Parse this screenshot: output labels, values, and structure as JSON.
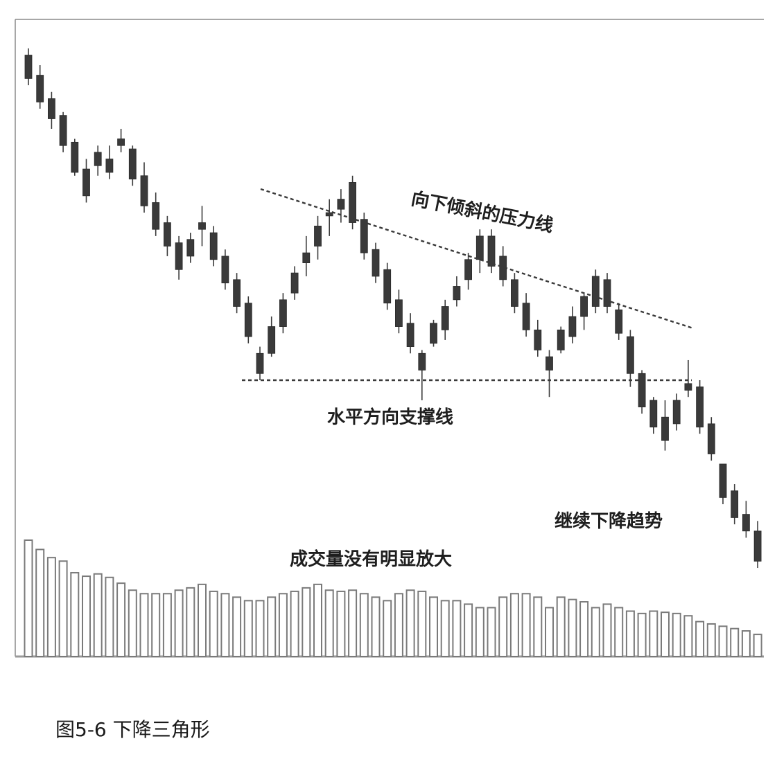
{
  "caption": "图5-6 下降三角形",
  "chart_data": {
    "type": "candlestick",
    "title": "",
    "xlabel": "",
    "ylabel": "",
    "grid": false,
    "colors": {
      "candle": "#3a3a3a",
      "volume_outline": "#7a7a7a",
      "line": "#3a3a3a",
      "frame": "#8a8a8a"
    },
    "annotations": {
      "resistance": "向下倾斜的压力线",
      "support": "水平方向支撑线",
      "trend": "继续下降趋势",
      "volume": "成交量没有明显放大"
    },
    "price_range": [
      0,
      100
    ],
    "candles": [
      {
        "o": 97,
        "h": 99,
        "l": 88,
        "c": 90
      },
      {
        "o": 91,
        "h": 94,
        "l": 81,
        "c": 83
      },
      {
        "o": 84,
        "h": 86,
        "l": 75,
        "c": 78
      },
      {
        "o": 79,
        "h": 80,
        "l": 68,
        "c": 70
      },
      {
        "o": 71,
        "h": 72,
        "l": 61,
        "c": 62
      },
      {
        "o": 63,
        "h": 66,
        "l": 53,
        "c": 55
      },
      {
        "o": 64,
        "h": 70,
        "l": 61,
        "c": 68
      },
      {
        "o": 66,
        "h": 70,
        "l": 60,
        "c": 62
      },
      {
        "o": 72,
        "h": 75,
        "l": 68,
        "c": 70
      },
      {
        "o": 69,
        "h": 70,
        "l": 58,
        "c": 60
      },
      {
        "o": 61,
        "h": 65,
        "l": 50,
        "c": 52
      },
      {
        "o": 53,
        "h": 56,
        "l": 43,
        "c": 45
      },
      {
        "o": 47,
        "h": 49,
        "l": 37,
        "c": 40
      },
      {
        "o": 41,
        "h": 43,
        "l": 30,
        "c": 33
      },
      {
        "o": 37,
        "h": 44,
        "l": 35,
        "c": 42
      },
      {
        "o": 45,
        "h": 52,
        "l": 40,
        "c": 47
      },
      {
        "o": 44,
        "h": 46,
        "l": 34,
        "c": 36
      },
      {
        "o": 37,
        "h": 39,
        "l": 27,
        "c": 29
      },
      {
        "o": 30,
        "h": 32,
        "l": 20,
        "c": 22
      },
      {
        "o": 23,
        "h": 25,
        "l": 11,
        "c": 13
      },
      {
        "o": 8,
        "h": 10,
        "l": 0,
        "c": 2
      },
      {
        "o": 16,
        "h": 19,
        "l": 7,
        "c": 8
      },
      {
        "o": 16,
        "h": 26,
        "l": 14,
        "c": 24
      },
      {
        "o": 26,
        "h": 34,
        "l": 24,
        "c": 32
      },
      {
        "o": 35,
        "h": 43,
        "l": 31,
        "c": 38
      },
      {
        "o": 40,
        "h": 49,
        "l": 36,
        "c": 46
      },
      {
        "o": 50,
        "h": 54,
        "l": 43,
        "c": 49
      },
      {
        "o": 51,
        "h": 57,
        "l": 47,
        "c": 54
      },
      {
        "o": 59,
        "h": 61,
        "l": 45,
        "c": 47
      },
      {
        "o": 48,
        "h": 50,
        "l": 36,
        "c": 38
      },
      {
        "o": 39,
        "h": 41,
        "l": 29,
        "c": 31
      },
      {
        "o": 33,
        "h": 35,
        "l": 21,
        "c": 23
      },
      {
        "o": 24,
        "h": 27,
        "l": 14,
        "c": 16
      },
      {
        "o": 17,
        "h": 20,
        "l": 8,
        "c": 10
      },
      {
        "o": 8,
        "h": 9,
        "l": -6,
        "c": 3
      },
      {
        "o": 11,
        "h": 18,
        "l": 10,
        "c": 17
      },
      {
        "o": 15,
        "h": 24,
        "l": 12,
        "c": 22
      },
      {
        "o": 24,
        "h": 31,
        "l": 22,
        "c": 28
      },
      {
        "o": 30,
        "h": 38,
        "l": 27,
        "c": 36
      },
      {
        "o": 36,
        "h": 45,
        "l": 32,
        "c": 43
      },
      {
        "o": 43,
        "h": 45,
        "l": 32,
        "c": 34
      },
      {
        "o": 37,
        "h": 40,
        "l": 28,
        "c": 30
      },
      {
        "o": 30,
        "h": 32,
        "l": 20,
        "c": 22
      },
      {
        "o": 23,
        "h": 26,
        "l": 13,
        "c": 15
      },
      {
        "o": 15,
        "h": 18,
        "l": 7,
        "c": 9
      },
      {
        "o": 7,
        "h": 9,
        "l": -5,
        "c": 3
      },
      {
        "o": 9,
        "h": 16,
        "l": 8,
        "c": 15
      },
      {
        "o": 13,
        "h": 22,
        "l": 11,
        "c": 19
      },
      {
        "o": 19,
        "h": 26,
        "l": 15,
        "c": 25
      },
      {
        "o": 22,
        "h": 33,
        "l": 20,
        "c": 31
      },
      {
        "o": 30,
        "h": 32,
        "l": 20,
        "c": 22
      },
      {
        "o": 21,
        "h": 23,
        "l": 12,
        "c": 14
      },
      {
        "o": 13,
        "h": 15,
        "l": -2,
        "c": 2
      },
      {
        "o": 2,
        "h": 3,
        "l": -10,
        "c": -8
      },
      {
        "o": -6,
        "h": -5,
        "l": -16,
        "c": -14
      },
      {
        "o": -11,
        "h": -6,
        "l": -21,
        "c": -18
      },
      {
        "o": -13,
        "h": -4,
        "l": -15,
        "c": -6
      },
      {
        "o": -1,
        "h": 6,
        "l": -5,
        "c": -3
      },
      {
        "o": -2,
        "h": 0,
        "l": -16,
        "c": -14
      },
      {
        "o": -13,
        "h": -11,
        "l": -24,
        "c": -22
      },
      {
        "o": -25,
        "h": -25,
        "l": -37,
        "c": -35
      },
      {
        "o": -33,
        "h": -31,
        "l": -43,
        "c": -41
      },
      {
        "o": -40,
        "h": -36,
        "l": -47,
        "c": -45
      },
      {
        "o": -45,
        "h": -42,
        "l": -56,
        "c": -54
      }
    ],
    "volume": [
      100,
      92,
      85,
      82,
      72,
      69,
      71,
      68,
      63,
      57,
      54,
      54,
      54,
      57,
      59,
      62,
      56,
      54,
      51,
      48,
      48,
      51,
      54,
      56,
      59,
      62,
      57,
      56,
      57,
      54,
      51,
      48,
      54,
      57,
      56,
      51,
      48,
      48,
      45,
      42,
      42,
      51,
      54,
      54,
      51,
      42,
      51,
      49,
      47,
      42,
      45,
      42,
      39,
      37,
      39,
      38,
      37,
      35,
      30,
      28,
      26,
      24,
      22,
      19
    ],
    "volume_range": [
      0,
      105
    ]
  }
}
